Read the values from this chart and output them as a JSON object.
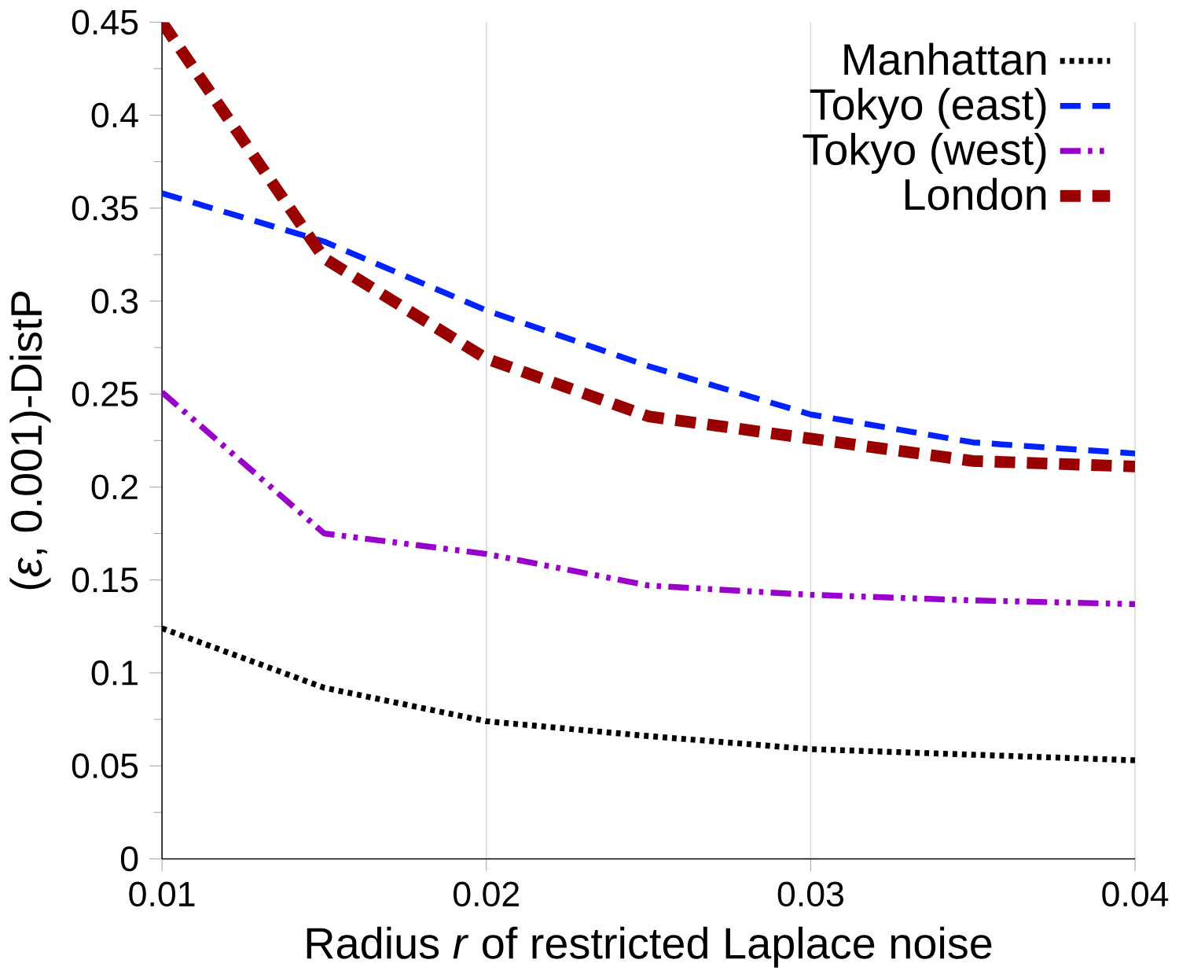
{
  "chart_data": {
    "type": "line",
    "xlabel": "Radius *r* of restricted Laplace noise",
    "ylabel": "(*ε*, 0.001)-DistP",
    "x": [
      0.01,
      0.015,
      0.02,
      0.025,
      0.03,
      0.035,
      0.04
    ],
    "series": [
      {
        "name": "Manhattan",
        "color": "#000000",
        "line_style": "dotted",
        "values": [
          0.124,
          0.092,
          0.074,
          0.066,
          0.059,
          0.056,
          0.053
        ]
      },
      {
        "name": "Tokyo (east)",
        "color": "#0022ff",
        "line_style": "dashed",
        "values": [
          0.358,
          0.332,
          0.295,
          0.265,
          0.239,
          0.224,
          0.218
        ]
      },
      {
        "name": "Tokyo (west)",
        "color": "#9900cc",
        "line_style": "dashdotted",
        "values": [
          0.251,
          0.175,
          0.164,
          0.147,
          0.142,
          0.139,
          0.137
        ]
      },
      {
        "name": "London",
        "color": "#990000",
        "line_style": "dashed",
        "values": [
          0.45,
          0.323,
          0.269,
          0.238,
          0.226,
          0.214,
          0.211
        ]
      }
    ],
    "xlim": [
      0.01,
      0.04
    ],
    "xticks": [
      0.01,
      0.02,
      0.03,
      0.04
    ],
    "ylim": [
      0,
      0.45
    ],
    "yticks": [
      0,
      0.05,
      0.1,
      0.15,
      0.2,
      0.25,
      0.3,
      0.35,
      0.4,
      0.45
    ],
    "grid": "x",
    "legend": "top right",
    "marker": "none"
  }
}
